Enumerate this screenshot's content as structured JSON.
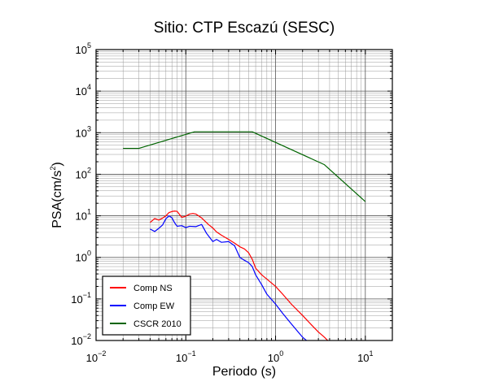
{
  "chart_data": {
    "type": "line",
    "title": "Sitio: CTP Escazú (SESC)",
    "xlabel": "Periodo (s)",
    "ylabel": "PSA(cm/s²)",
    "ylabel_base": "PSA(cm/s",
    "ylabel_exp": "2",
    "ylabel_close": ")",
    "xscale": "log",
    "yscale": "log",
    "xlim": [
      0.01,
      20
    ],
    "ylim": [
      0.01,
      100000
    ],
    "grid": true,
    "legend_position": "bottom-left",
    "x_ticks": [
      {
        "base": "10",
        "exp": "−2"
      },
      {
        "base": "10",
        "exp": "−1"
      },
      {
        "base": "10",
        "exp": "0"
      },
      {
        "base": "10",
        "exp": "1"
      }
    ],
    "y_ticks": [
      {
        "base": "10",
        "exp": "−2"
      },
      {
        "base": "10",
        "exp": "−1"
      },
      {
        "base": "10",
        "exp": "0"
      },
      {
        "base": "10",
        "exp": "1"
      },
      {
        "base": "10",
        "exp": "2"
      },
      {
        "base": "10",
        "exp": "3"
      },
      {
        "base": "10",
        "exp": "4"
      },
      {
        "base": "10",
        "exp": "5"
      }
    ],
    "series": [
      {
        "name": "Comp NS",
        "color": "#ff0000",
        "x": [
          0.04,
          0.045,
          0.05,
          0.055,
          0.06,
          0.065,
          0.07,
          0.075,
          0.08,
          0.09,
          0.1,
          0.11,
          0.12,
          0.13,
          0.15,
          0.18,
          0.2,
          0.22,
          0.25,
          0.3,
          0.35,
          0.4,
          0.45,
          0.5,
          0.55,
          0.6,
          0.7,
          0.8,
          1.0,
          1.2,
          1.5,
          2.0,
          2.5,
          3.0,
          3.5,
          4.0
        ],
        "y": [
          6.9,
          8.6,
          7.9,
          8.8,
          10.0,
          12.0,
          12.7,
          13.0,
          12.8,
          9.2,
          9.8,
          11.0,
          11.4,
          11.0,
          8.9,
          6.1,
          5.1,
          4.1,
          3.4,
          2.7,
          2.2,
          1.8,
          1.6,
          1.3,
          0.9,
          0.55,
          0.38,
          0.3,
          0.2,
          0.13,
          0.075,
          0.04,
          0.024,
          0.016,
          0.012,
          0.009
        ]
      },
      {
        "name": "Comp EW",
        "color": "#0000ff",
        "x": [
          0.04,
          0.045,
          0.05,
          0.055,
          0.06,
          0.065,
          0.07,
          0.075,
          0.08,
          0.09,
          0.1,
          0.11,
          0.13,
          0.15,
          0.17,
          0.2,
          0.22,
          0.25,
          0.3,
          0.35,
          0.4,
          0.45,
          0.5,
          0.55,
          0.6,
          0.7,
          0.8,
          1.0,
          1.2,
          1.5,
          2.0,
          2.5
        ],
        "y": [
          4.8,
          4.2,
          5.0,
          6.0,
          8.5,
          10.0,
          9.0,
          6.8,
          5.6,
          5.8,
          5.2,
          5.6,
          5.5,
          6.2,
          3.8,
          2.4,
          2.7,
          2.3,
          2.4,
          1.9,
          1.0,
          0.85,
          0.75,
          0.6,
          0.38,
          0.22,
          0.13,
          0.075,
          0.045,
          0.025,
          0.012,
          0.008
        ]
      },
      {
        "name": "CSCR 2010",
        "color": "#006400",
        "x": [
          0.02,
          0.03,
          0.125,
          0.55,
          3.5,
          10.0
        ],
        "y": [
          420,
          420,
          1050,
          1050,
          170,
          22
        ]
      }
    ]
  }
}
